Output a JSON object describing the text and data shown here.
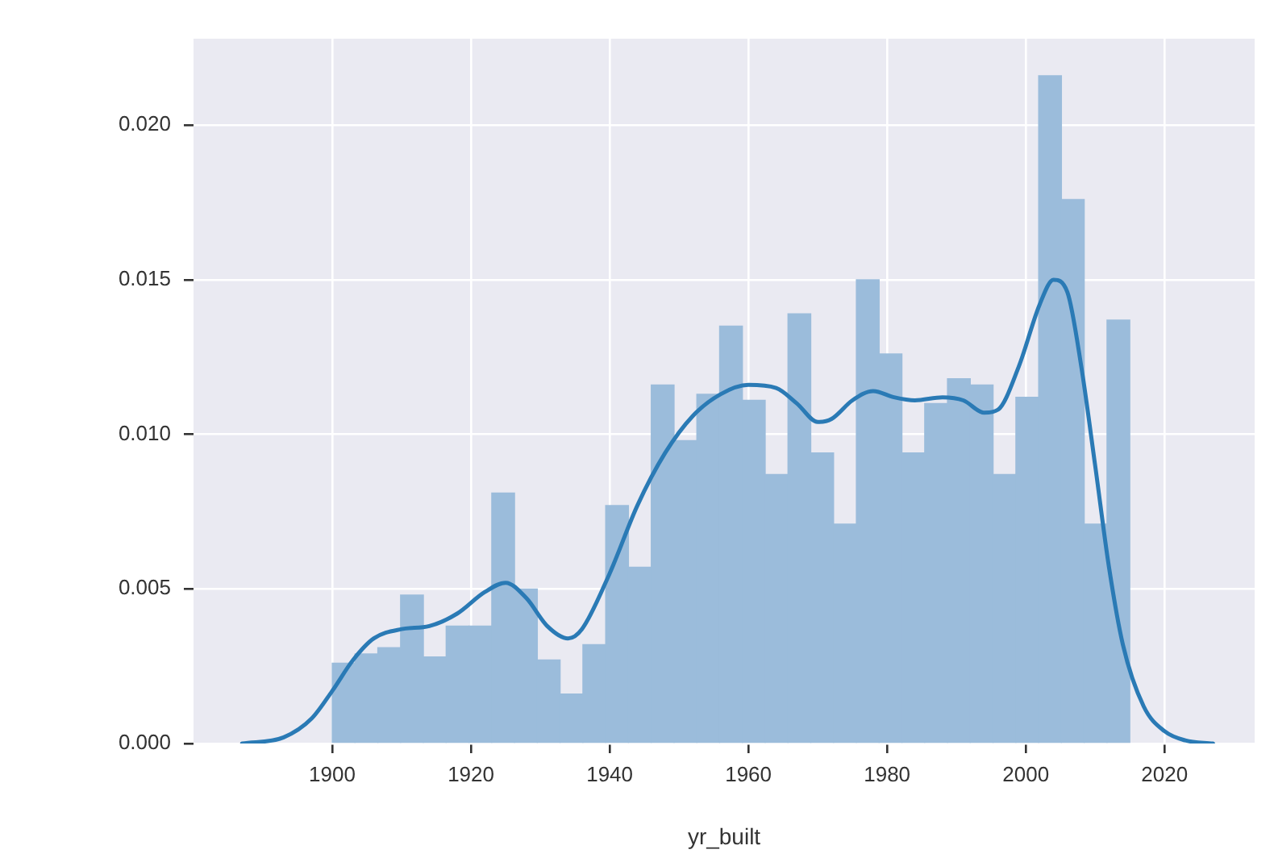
{
  "chart_data": {
    "type": "histogram",
    "xlabel": "yr_built",
    "xlim": [
      1880,
      2033
    ],
    "ylim": [
      0,
      0.0228
    ],
    "xticks": [
      1900,
      1920,
      1940,
      1960,
      1980,
      2000,
      2020
    ],
    "yticks": [
      {
        "value": 0,
        "label": "0.000"
      },
      0.005,
      {
        "value": 0.01,
        "label": "0.010"
      },
      0.015,
      {
        "value": 0.02,
        "label": "0.020"
      }
    ],
    "grid": true,
    "legend": false,
    "series": [
      {
        "color": "#9bbcdb",
        "bins": [
          1900,
          1903.29,
          1906.57,
          1909.86,
          1913.14,
          1916.43,
          1919.71,
          1923,
          1926.29,
          1929.57,
          1932.86,
          1936.14,
          1939.43,
          1942.71,
          1946,
          1949.29,
          1952.57,
          1955.86,
          1959.14,
          1962.43,
          1965.71,
          1969,
          1972.29,
          1975.57,
          1978.86,
          1982.14,
          1985.43,
          1988.71,
          1992,
          1995.29,
          1998.57,
          2001.86,
          2005.14,
          2008.43,
          2011.71,
          2015
        ],
        "values": [
          0.0026,
          0.0029,
          0.0031,
          0.0048,
          0.0028,
          0.0038,
          0.0038,
          0.0081,
          0.005,
          0.0027,
          0.0016,
          0.0032,
          0.0077,
          0.0057,
          0.0116,
          0.0098,
          0.0113,
          0.0135,
          0.0111,
          0.0087,
          0.0139,
          0.0094,
          0.0071,
          0.015,
          0.0126,
          0.0094,
          0.011,
          0.0118,
          0.0116,
          0.0087,
          0.0112,
          0.0216,
          0.0176,
          0.0071,
          0.0137
        ]
      },
      {
        "type": "line",
        "color": "#2a7ab5",
        "marker": "none",
        "line_style": "solid",
        "x": [
          1887,
          1893,
          1897,
          1900,
          1903,
          1906,
          1910,
          1914,
          1918,
          1922,
          1925,
          1928,
          1931,
          1934,
          1936,
          1940,
          1944,
          1948,
          1952,
          1956,
          1960,
          1964,
          1967,
          1970,
          1972,
          1975,
          1978,
          1981,
          1984,
          1988,
          1991,
          1994,
          1996,
          1999,
          2002,
          2004,
          2006,
          2008,
          2010,
          2012,
          2014,
          2017,
          2020,
          2023,
          2027
        ],
        "values": [
          0,
          0.0002,
          0.0008,
          0.0017,
          0.0027,
          0.0034,
          0.0037,
          0.0038,
          0.0042,
          0.0049,
          0.0052,
          0.0047,
          0.0038,
          0.0034,
          0.0037,
          0.0055,
          0.0077,
          0.0094,
          0.0106,
          0.0113,
          0.0116,
          0.0115,
          0.011,
          0.0104,
          0.0105,
          0.0111,
          0.0114,
          0.0112,
          0.0111,
          0.0112,
          0.0111,
          0.0107,
          0.0108,
          0.0122,
          0.0142,
          0.015,
          0.0146,
          0.0122,
          0.009,
          0.0057,
          0.0032,
          0.0012,
          0.0004,
          0.0001,
          0
        ]
      }
    ]
  }
}
